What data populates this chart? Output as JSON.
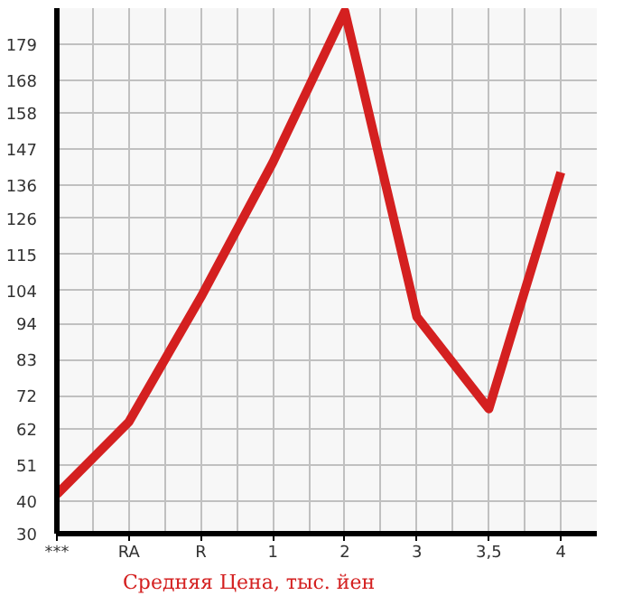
{
  "chart_data": {
    "type": "line",
    "categories": [
      "***",
      "RA",
      "R",
      "1",
      "2",
      "3",
      "3,5",
      "4"
    ],
    "series": [
      {
        "name": "Средняя Цена, тыс. йен",
        "color": "#d42020",
        "values": [
          42,
          64,
          102,
          143,
          189,
          96,
          68,
          140
        ]
      }
    ],
    "ylim": [
      30,
      190
    ],
    "yticks": [
      30,
      40,
      51,
      62,
      72,
      83,
      94,
      104,
      115,
      126,
      136,
      147,
      158,
      168,
      179
    ],
    "grid": true,
    "legend": "bottom",
    "marker": "none",
    "line_style": "solid"
  }
}
